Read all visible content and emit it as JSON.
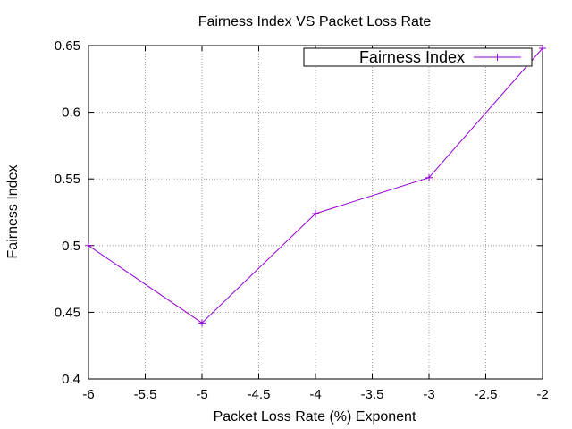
{
  "chart_data": {
    "type": "line",
    "title": "Fairness Index VS Packet Loss Rate",
    "xlabel": "Packet Loss Rate (%) Exponent",
    "ylabel": "Fairness Index",
    "xlim": [
      -6,
      -2
    ],
    "ylim": [
      0.4,
      0.65
    ],
    "xticks": [
      "-6",
      "-5.5",
      "-5",
      "-4.5",
      "-4",
      "-3.5",
      "-3",
      "-2.5",
      "-2"
    ],
    "yticks": [
      "0.4",
      "0.45",
      "0.5",
      "0.55",
      "0.6",
      "0.65"
    ],
    "grid": true,
    "legend_position": "top-right",
    "series": [
      {
        "name": "Fairness Index",
        "color": "#9400d3",
        "marker": "plus",
        "x": [
          -6,
          -5,
          -4,
          -3,
          -2
        ],
        "y": [
          0.5,
          0.442,
          0.524,
          0.551,
          0.648
        ]
      }
    ]
  }
}
